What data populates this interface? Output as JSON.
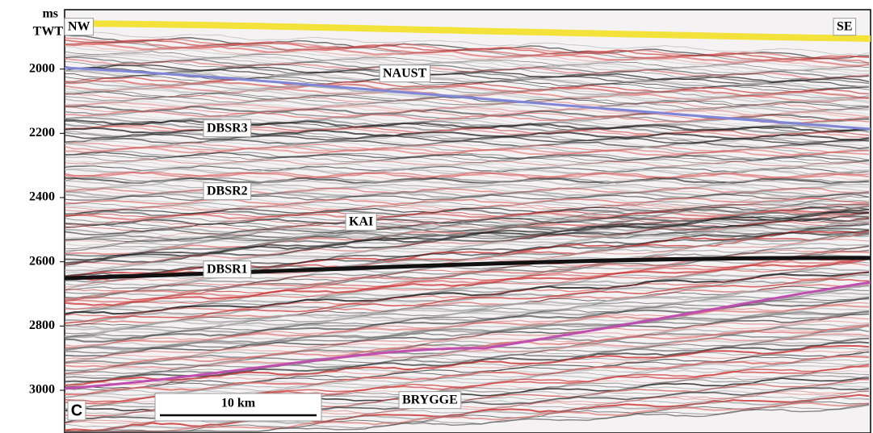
{
  "axis": {
    "unit_lines": [
      "ms",
      "TWT"
    ],
    "ticks": [
      2000,
      2200,
      2400,
      2600,
      2800,
      3000
    ],
    "range": [
      1815,
      3133
    ]
  },
  "directions": {
    "left": "NW",
    "right": "SE"
  },
  "labels": {
    "naust": "NAUST",
    "dbsr3": "DBSR3",
    "dbsr2": "DBSR2",
    "kai": "KAI",
    "dbsr1": "DBSR1",
    "brygge": "BRYGGE"
  },
  "panel": "c",
  "scale_bar": "10 km"
}
